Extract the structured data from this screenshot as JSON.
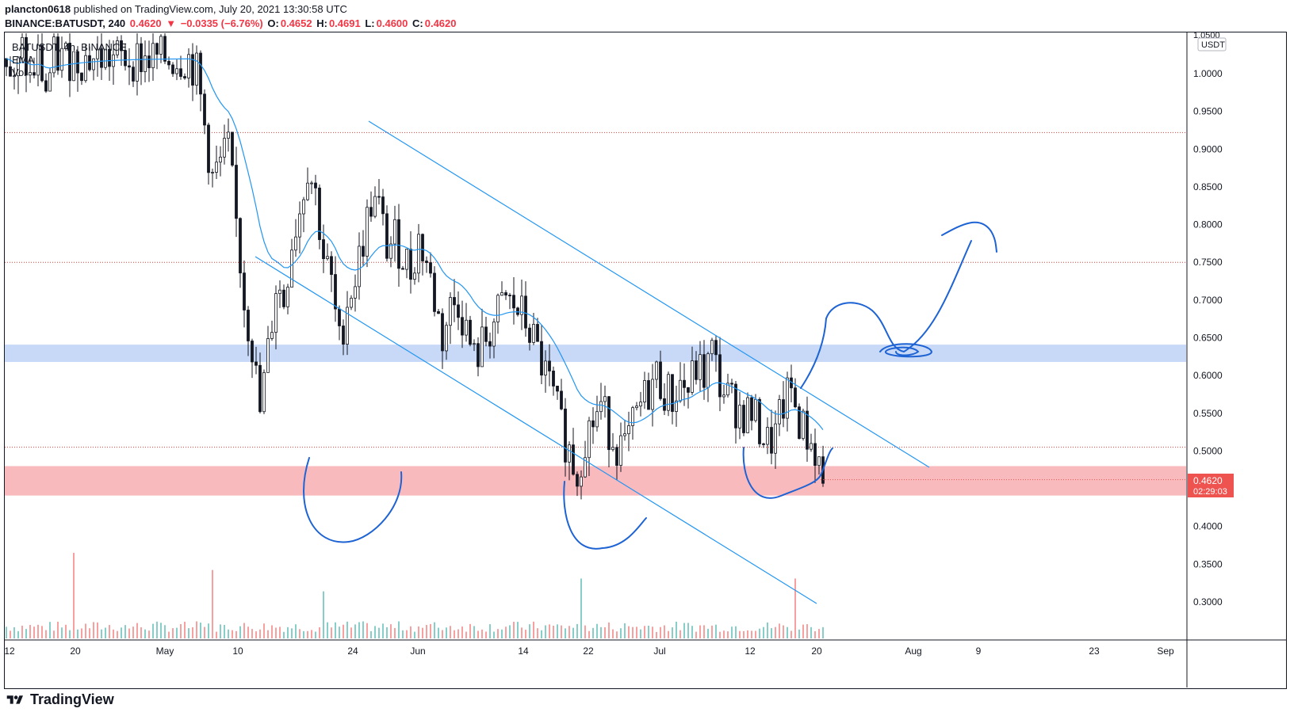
{
  "header": {
    "publisher": "plancton0618",
    "published_text": "published on TradingView.com, July 20, 2021 13:30:58 UTC",
    "symbol_line": "BINANCE:BATUSDT, 240",
    "last": "0.4620",
    "change": "−0.0335 (−6.76%)",
    "open_label": "O:",
    "open": "0.4652",
    "high_label": "H:",
    "high": "0.4691",
    "low_label": "L:",
    "low": "0.4600",
    "close_label": "C:",
    "close": "0.4620"
  },
  "legend": {
    "title": "BATUSDT, 4h, BINANCE",
    "ema": "EMA",
    "vol": "Vol"
  },
  "price_axis": {
    "currency": "USDT",
    "top_label": "1.0500",
    "last_price": "0.4620",
    "countdown": "02:29:03"
  },
  "footer": {
    "brand": "TradingView"
  },
  "colors": {
    "up": "#26a69a",
    "down": "#ef5350",
    "ema": "#2196f3",
    "drawing": "#1e63d4",
    "support_zone": "#f8aeb1",
    "resistance_zone": "#b9d0f5",
    "level_line": "#e53935"
  },
  "chart_data": {
    "type": "candlestick",
    "symbol": "BATUSDT",
    "timeframe": "4h",
    "exchange": "BINANCE",
    "y_ticks": [
      1.0,
      0.95,
      0.9,
      0.85,
      0.8,
      0.75,
      0.7,
      0.65,
      0.6,
      0.55,
      0.5,
      0.4,
      0.35,
      0.3
    ],
    "x_ticks": [
      "12",
      "20",
      "May",
      "10",
      "24",
      "Jun",
      "14",
      "22",
      "Jul",
      "12",
      "20",
      "Aug",
      "9",
      "23",
      "Sep"
    ],
    "ylim": [
      0.26,
      1.05
    ],
    "horizontal_levels": [
      0.922,
      0.75,
      0.505
    ],
    "zones": [
      {
        "name": "resistance",
        "from": 0.618,
        "to": 0.641
      },
      {
        "name": "support",
        "from": 0.441,
        "to": 0.48
      }
    ],
    "price_path": [
      [
        0,
        1.02
      ],
      [
        2,
        0.98
      ],
      [
        4,
        1.03
      ],
      [
        6,
        0.99
      ],
      [
        8,
        1.02
      ],
      [
        10,
        0.98
      ],
      [
        12,
        1.02
      ],
      [
        46,
        1.02
      ],
      [
        48,
        1.0
      ],
      [
        52,
        0.86
      ],
      [
        54,
        0.88
      ],
      [
        56,
        0.9
      ],
      [
        58,
        0.8
      ],
      [
        60,
        0.7
      ],
      [
        62,
        0.64
      ],
      [
        64,
        0.55
      ],
      [
        66,
        0.63
      ],
      [
        68,
        0.72
      ],
      [
        70,
        0.7
      ],
      [
        72,
        0.78
      ],
      [
        74,
        0.82
      ],
      [
        76,
        0.88
      ],
      [
        78,
        0.84
      ],
      [
        80,
        0.76
      ],
      [
        82,
        0.72
      ],
      [
        84,
        0.64
      ],
      [
        86,
        0.7
      ],
      [
        88,
        0.73
      ],
      [
        90,
        0.78
      ],
      [
        92,
        0.83
      ],
      [
        94,
        0.82
      ],
      [
        96,
        0.77
      ],
      [
        98,
        0.78
      ],
      [
        100,
        0.76
      ],
      [
        102,
        0.74
      ],
      [
        104,
        0.78
      ],
      [
        106,
        0.75
      ],
      [
        108,
        0.7
      ],
      [
        110,
        0.65
      ],
      [
        112,
        0.69
      ],
      [
        114,
        0.7
      ],
      [
        116,
        0.66
      ],
      [
        118,
        0.62
      ],
      [
        120,
        0.64
      ],
      [
        122,
        0.66
      ],
      [
        124,
        0.68
      ],
      [
        126,
        0.7
      ],
      [
        128,
        0.69
      ],
      [
        130,
        0.68
      ],
      [
        132,
        0.66
      ],
      [
        134,
        0.63
      ],
      [
        136,
        0.6
      ],
      [
        138,
        0.57
      ],
      [
        140,
        0.53
      ],
      [
        142,
        0.5
      ],
      [
        144,
        0.47
      ],
      [
        146,
        0.52
      ],
      [
        148,
        0.54
      ],
      [
        150,
        0.56
      ],
      [
        152,
        0.53
      ],
      [
        154,
        0.51
      ],
      [
        156,
        0.5
      ],
      [
        158,
        0.53
      ],
      [
        160,
        0.56
      ],
      [
        162,
        0.58
      ],
      [
        164,
        0.6
      ],
      [
        166,
        0.58
      ],
      [
        168,
        0.57
      ],
      [
        170,
        0.59
      ],
      [
        172,
        0.58
      ],
      [
        174,
        0.61
      ],
      [
        176,
        0.6
      ],
      [
        178,
        0.63
      ],
      [
        180,
        0.59
      ],
      [
        182,
        0.57
      ],
      [
        184,
        0.56
      ],
      [
        186,
        0.55
      ],
      [
        188,
        0.55
      ],
      [
        190,
        0.53
      ],
      [
        192,
        0.51
      ],
      [
        194,
        0.52
      ],
      [
        196,
        0.56
      ],
      [
        198,
        0.58
      ],
      [
        200,
        0.54
      ],
      [
        202,
        0.52
      ],
      [
        204,
        0.5
      ],
      [
        206,
        0.465
      ]
    ],
    "volume": {
      "baseline": 0.01,
      "spikes": [
        [
          17,
          0.4
        ],
        [
          52,
          0.32
        ],
        [
          80,
          0.22
        ],
        [
          145,
          0.28
        ],
        [
          199,
          0.28
        ]
      ]
    },
    "ema_note": "EMA line follows price with lag",
    "drawings": [
      "descending channel upper trendline",
      "descending channel lower trendline",
      "projection path upward",
      "bottom arcs at lows"
    ]
  }
}
